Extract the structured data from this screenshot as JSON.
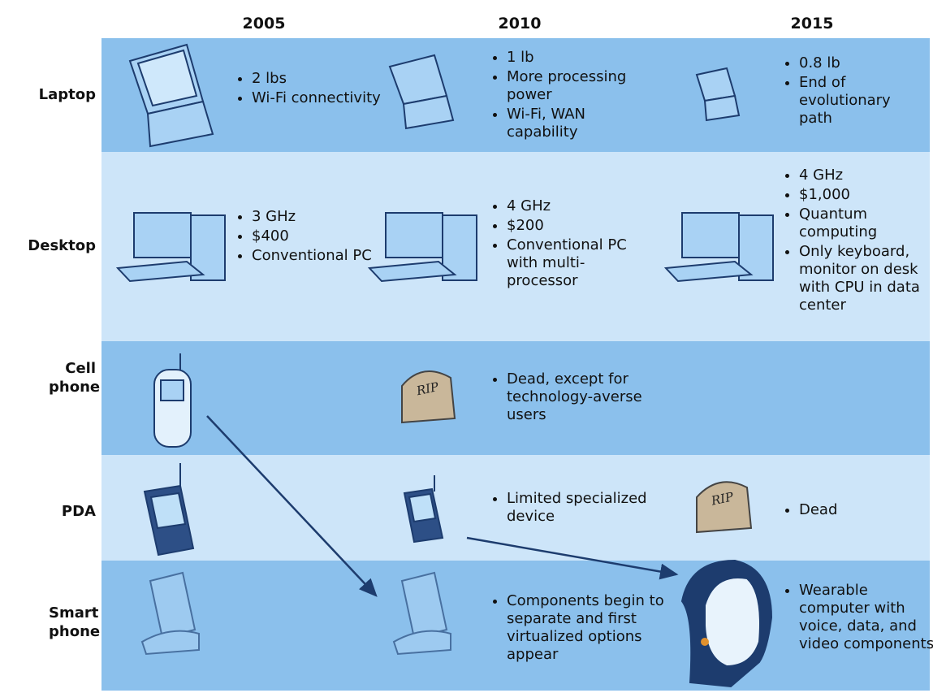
{
  "columns": [
    "2005",
    "2010",
    "2015"
  ],
  "tombstone_text": "RIP",
  "rows": [
    {
      "label": "Laptop",
      "cells": [
        [
          "2 lbs",
          "Wi-Fi connectivity"
        ],
        [
          "1 lb",
          "More processing power",
          "Wi-Fi, WAN capability"
        ],
        [
          "0.8 lb",
          "End of evolutionary path"
        ]
      ]
    },
    {
      "label": "Desktop",
      "cells": [
        [
          "3 GHz",
          "$400",
          "Conventional PC"
        ],
        [
          "4 GHz",
          "$200",
          "Conventional PC with multi-processor"
        ],
        [
          "4 GHz",
          "$1,000",
          "Quantum computing",
          "Only keyboard, monitor on desk with CPU in data center"
        ]
      ]
    },
    {
      "label": "Cell phone",
      "cells": [
        null,
        [
          "Dead, except for technology-averse users"
        ],
        null
      ]
    },
    {
      "label": "PDA",
      "cells": [
        null,
        [
          "Limited specialized device"
        ],
        [
          "Dead"
        ]
      ]
    },
    {
      "label": "Smart phone",
      "cells": [
        null,
        [
          "Components begin to separate and first virtualized options appear"
        ],
        [
          "Wearable computer with voice, data, and video components"
        ]
      ]
    }
  ]
}
